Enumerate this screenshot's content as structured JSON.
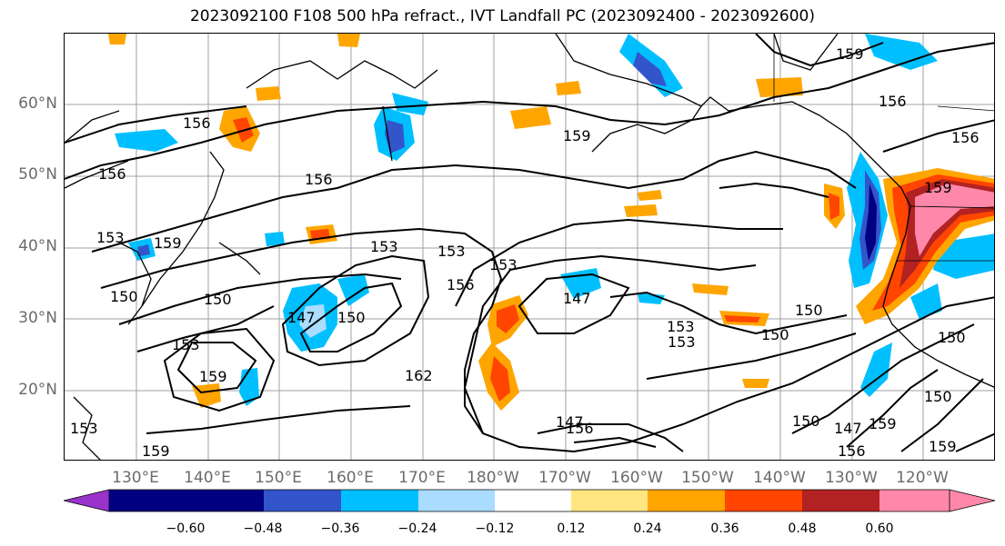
{
  "title": "2023092100 F108 500 hPa refract., IVT Landfall PC (2023092400 - 2023092600)",
  "lat_labels": [
    "60°N",
    "50°N",
    "40°N",
    "30°N",
    "20°N"
  ],
  "lon_labels": [
    "130°E",
    "140°E",
    "150°E",
    "160°E",
    "170°E",
    "180°W",
    "170°W",
    "160°W",
    "150°W",
    "140°W",
    "130°W",
    "120°W"
  ],
  "colorbar": {
    "ticks": [
      "−0.60",
      "−0.48",
      "−0.36",
      "−0.24",
      "−0.12",
      "0.12",
      "0.24",
      "0.36",
      "0.48",
      "0.60"
    ],
    "colors": [
      "#9933cc",
      "#000080",
      "#3355cc",
      "#00bfff",
      "#aadcff",
      "#ffffff",
      "#ffe680",
      "#ffa500",
      "#ff4500",
      "#b22222",
      "#ff88aa"
    ]
  },
  "contour_labels": [
    "159",
    "156",
    "156",
    "156",
    "156",
    "159",
    "153",
    "156",
    "153",
    "159",
    "153",
    "150",
    "150",
    "147",
    "150",
    "153",
    "159",
    "153",
    "147",
    "153",
    "156",
    "153",
    "162",
    "156",
    "147",
    "153",
    "150",
    "150",
    "147",
    "150",
    "159",
    "159",
    "150",
    "159",
    "156",
    "150",
    "159"
  ]
}
